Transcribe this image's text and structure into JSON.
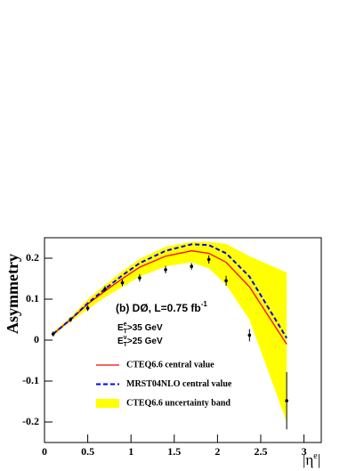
{
  "chart_data": {
    "type": "line",
    "x_label": [
      "|η",
      "e",
      "|"
    ],
    "y_label": "Asymmetry",
    "annotations": [
      [
        "(b) DØ, L=0.75 fb",
        "-1"
      ],
      [
        "E",
        "e",
        "T",
        ">35 GeV"
      ],
      [
        "E",
        "ν",
        "T",
        ">25 GeV"
      ]
    ],
    "x": [
      0.1,
      0.3,
      0.5,
      0.7,
      0.9,
      1.1,
      1.4,
      1.7,
      1.9,
      2.1,
      2.37,
      2.8
    ],
    "series": [
      {
        "name": "CTEQ6.6 central value",
        "color": "#ff0000",
        "values": [
          0.015,
          0.05,
          0.088,
          0.12,
          0.15,
          0.178,
          0.205,
          0.218,
          0.212,
          0.19,
          0.13,
          -0.01
        ]
      },
      {
        "name": "MRST04NLO central value",
        "color": "#0000ff",
        "dashed": true,
        "values": [
          0.015,
          0.05,
          0.09,
          0.125,
          0.158,
          0.188,
          0.218,
          0.234,
          0.232,
          0.212,
          0.155,
          0.005
        ]
      },
      {
        "name": "CTEQ6.6 uncertainty band",
        "color": "#ffff00",
        "band": true,
        "upper": [
          0.02,
          0.055,
          0.1,
          0.135,
          0.168,
          0.198,
          0.228,
          0.24,
          0.24,
          0.235,
          0.205,
          0.165
        ],
        "lower": [
          0.01,
          0.045,
          0.075,
          0.105,
          0.13,
          0.155,
          0.18,
          0.19,
          0.175,
          0.135,
          0.05,
          -0.2
        ]
      }
    ],
    "points": {
      "color": "#000000",
      "values": [
        0.015,
        0.05,
        0.078,
        0.125,
        0.14,
        0.152,
        0.172,
        0.18,
        0.197,
        0.145,
        0.012,
        -0.148
      ],
      "errors": [
        0.006,
        0.006,
        0.007,
        0.007,
        0.008,
        0.009,
        0.009,
        0.008,
        0.01,
        0.012,
        0.015,
        0.07
      ]
    },
    "xlim": [
      0,
      3.2
    ],
    "ylim": [
      -0.25,
      0.25
    ],
    "xticks": [
      0,
      0.5,
      1,
      1.5,
      2,
      2.5,
      3
    ],
    "yticks": [
      -0.2,
      -0.1,
      0,
      0.1,
      0.2
    ]
  }
}
